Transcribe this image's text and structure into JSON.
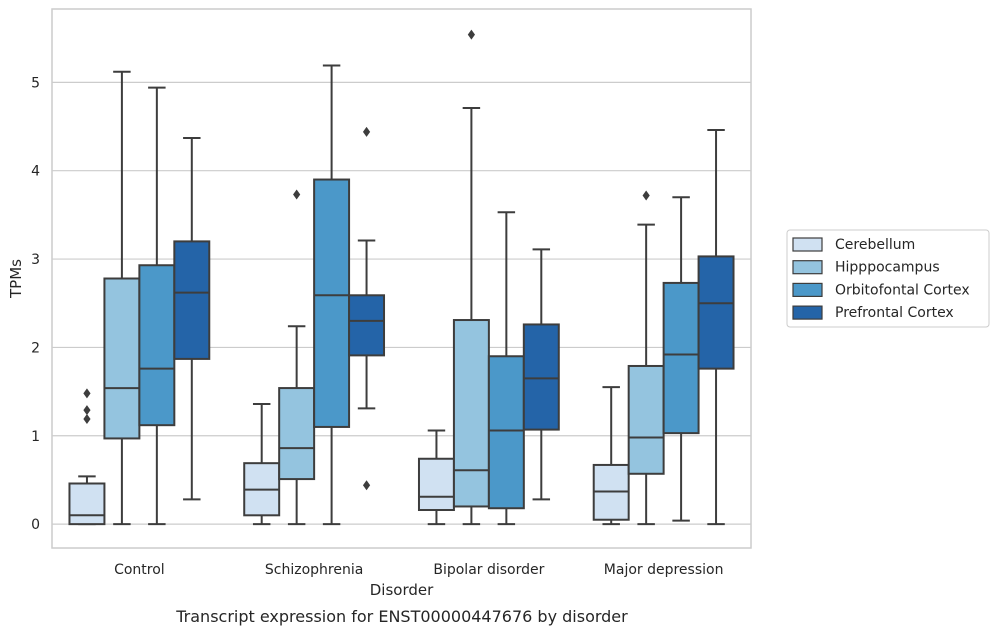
{
  "caption": "Transcript expression for ENST00000447676 by disorder",
  "chart_data": {
    "type": "box",
    "xlabel": "Disorder",
    "ylabel": "TPMs",
    "ylim": [
      -0.27,
      5.83
    ],
    "yticks": [
      0,
      1,
      2,
      3,
      4,
      5
    ],
    "grid": "horizontal",
    "legend_position": "right",
    "categories": [
      "Control",
      "Schizophrenia",
      "Bipolar disorder",
      "Major depression"
    ],
    "series": [
      {
        "name": "Cerebellum",
        "color": "#d0e1f2",
        "boxes": [
          {
            "whisker_low": 0.0,
            "q1": 0.0,
            "median": 0.1,
            "q3": 0.46,
            "whisker_high": 0.54,
            "outliers": [
              1.19,
              1.29,
              1.48
            ]
          },
          {
            "whisker_low": 0.0,
            "q1": 0.1,
            "median": 0.39,
            "q3": 0.69,
            "whisker_high": 1.36,
            "outliers": []
          },
          {
            "whisker_low": 0.0,
            "q1": 0.16,
            "median": 0.31,
            "q3": 0.74,
            "whisker_high": 1.06,
            "outliers": []
          },
          {
            "whisker_low": 0.0,
            "q1": 0.05,
            "median": 0.37,
            "q3": 0.67,
            "whisker_high": 1.55,
            "outliers": []
          }
        ]
      },
      {
        "name": "Hipppocampus",
        "color": "#94c4df",
        "boxes": [
          {
            "whisker_low": 0.0,
            "q1": 0.97,
            "median": 1.54,
            "q3": 2.78,
            "whisker_high": 5.12,
            "outliers": []
          },
          {
            "whisker_low": 0.0,
            "q1": 0.51,
            "median": 0.86,
            "q3": 1.54,
            "whisker_high": 2.24,
            "outliers": [
              3.73
            ]
          },
          {
            "whisker_low": 0.0,
            "q1": 0.2,
            "median": 0.61,
            "q3": 2.31,
            "whisker_high": 4.71,
            "outliers": [
              5.54
            ]
          },
          {
            "whisker_low": 0.0,
            "q1": 0.57,
            "median": 0.98,
            "q3": 1.79,
            "whisker_high": 3.39,
            "outliers": [
              3.72
            ]
          }
        ]
      },
      {
        "name": "Orbitofontal Cortex",
        "color": "#4b98c9",
        "boxes": [
          {
            "whisker_low": 0.0,
            "q1": 1.12,
            "median": 1.76,
            "q3": 2.93,
            "whisker_high": 4.94,
            "outliers": []
          },
          {
            "whisker_low": 0.0,
            "q1": 1.1,
            "median": 2.59,
            "q3": 3.9,
            "whisker_high": 5.19,
            "outliers": []
          },
          {
            "whisker_low": 0.0,
            "q1": 0.18,
            "median": 1.06,
            "q3": 1.9,
            "whisker_high": 3.53,
            "outliers": []
          },
          {
            "whisker_low": 0.04,
            "q1": 1.03,
            "median": 1.92,
            "q3": 2.73,
            "whisker_high": 3.7,
            "outliers": []
          }
        ]
      },
      {
        "name": "Prefrontal Cortex",
        "color": "#2464a8",
        "boxes": [
          {
            "whisker_low": 0.28,
            "q1": 1.87,
            "median": 2.62,
            "q3": 3.2,
            "whisker_high": 4.37,
            "outliers": []
          },
          {
            "whisker_low": 1.31,
            "q1": 1.91,
            "median": 2.3,
            "q3": 2.59,
            "whisker_high": 3.21,
            "outliers": [
              0.44,
              4.44
            ]
          },
          {
            "whisker_low": 0.28,
            "q1": 1.07,
            "median": 1.65,
            "q3": 2.26,
            "whisker_high": 3.11,
            "outliers": []
          },
          {
            "whisker_low": 0.0,
            "q1": 1.76,
            "median": 2.5,
            "q3": 3.03,
            "whisker_high": 4.46,
            "outliers": []
          }
        ]
      }
    ]
  }
}
